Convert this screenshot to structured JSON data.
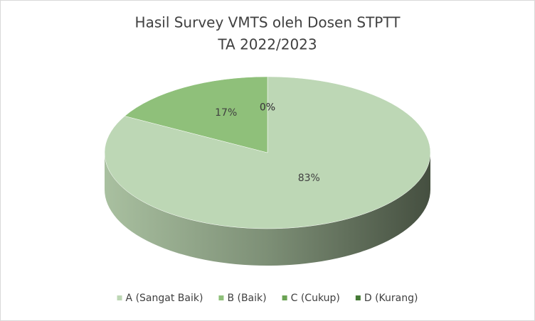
{
  "chart_data": {
    "type": "pie3d",
    "title": "Hasil Survey VMTS oleh Dosen STPTT",
    "subtitle": "TA 2022/2023",
    "categories": [
      "A (Sangat Baik)",
      "B (Baik)",
      "C (Cukup)",
      "D (Kurang)"
    ],
    "values": [
      83,
      17,
      0,
      0
    ],
    "value_labels": [
      "83%",
      "17%",
      "0%",
      "0%"
    ],
    "colors": [
      "#bdd7b5",
      "#8fc07a",
      "#6ba354",
      "#457a36"
    ],
    "legend": "bottom"
  }
}
